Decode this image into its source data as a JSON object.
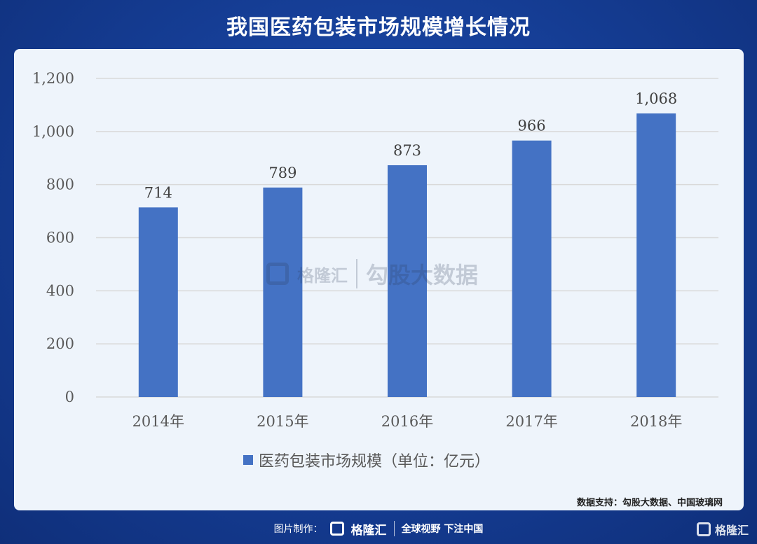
{
  "title": "我国医药包装市场规模增长情况",
  "colors": {
    "background": "#163f98",
    "card": "#eef4fb",
    "bar": "#4472c4",
    "gridline": "#d9d9d9"
  },
  "chart_data": {
    "type": "bar",
    "categories": [
      "2014年",
      "2015年",
      "2016年",
      "2017年",
      "2018年"
    ],
    "series": [
      {
        "name": "医药包装市场规模（单位：亿元）",
        "values": [
          714,
          789,
          873,
          966,
          1068
        ],
        "value_labels": [
          "714",
          "789",
          "873",
          "966",
          "1,068"
        ]
      }
    ],
    "ylim": [
      0,
      1200
    ],
    "yticks": [
      0,
      200,
      400,
      600,
      800,
      1000,
      1200
    ],
    "ytick_labels": [
      "0",
      "200",
      "400",
      "600",
      "800",
      "1,000",
      "1,200"
    ],
    "grid": true,
    "legend_position": "bottom"
  },
  "watermark": {
    "brand": "格隆汇",
    "text": "勾股大数据"
  },
  "source": "数据支持：勾股大数据、中国玻璃网",
  "footer": {
    "credit_label": "图片制作：",
    "brand": "格隆汇",
    "slogan": "全球视野 下注中国"
  },
  "corner_brand": "格隆汇",
  "icons": {
    "watermark_logo": "gelonghui-logo-icon",
    "footer_logo": "gelonghui-logo-icon",
    "corner_logo": "gelonghui-logo-icon"
  }
}
